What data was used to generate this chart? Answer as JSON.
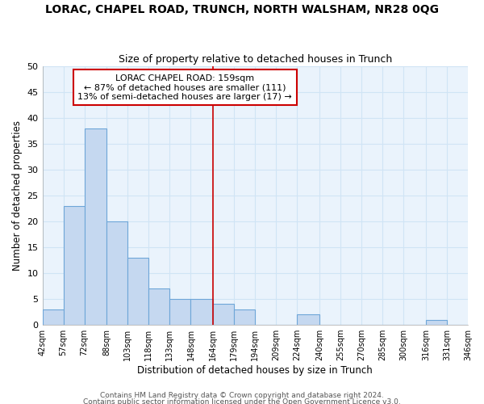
{
  "title": "LORAC, CHAPEL ROAD, TRUNCH, NORTH WALSHAM, NR28 0QG",
  "subtitle": "Size of property relative to detached houses in Trunch",
  "xlabel": "Distribution of detached houses by size in Trunch",
  "ylabel": "Number of detached properties",
  "bar_left_edges": [
    42,
    57,
    72,
    88,
    103,
    118,
    133,
    148,
    164,
    179,
    194,
    209,
    224,
    240,
    255,
    270,
    285,
    300,
    316,
    331
  ],
  "bar_heights": [
    3,
    23,
    38,
    20,
    13,
    7,
    5,
    5,
    4,
    3,
    0,
    0,
    2,
    0,
    0,
    0,
    0,
    0,
    1,
    0
  ],
  "bar_widths": [
    15,
    15,
    16,
    15,
    15,
    15,
    15,
    16,
    15,
    15,
    15,
    15,
    16,
    15,
    15,
    15,
    15,
    16,
    15,
    15
  ],
  "tick_labels": [
    "42sqm",
    "57sqm",
    "72sqm",
    "88sqm",
    "103sqm",
    "118sqm",
    "133sqm",
    "148sqm",
    "164sqm",
    "179sqm",
    "194sqm",
    "209sqm",
    "224sqm",
    "240sqm",
    "255sqm",
    "270sqm",
    "285sqm",
    "300sqm",
    "316sqm",
    "331sqm",
    "346sqm"
  ],
  "bar_color": "#c5d8f0",
  "bar_edge_color": "#6ea6d8",
  "grid_color": "#d0e4f5",
  "reference_line_x": 164,
  "reference_line_color": "#cc0000",
  "ylim": [
    0,
    50
  ],
  "yticks": [
    0,
    5,
    10,
    15,
    20,
    25,
    30,
    35,
    40,
    45,
    50
  ],
  "annotation_title": "LORAC CHAPEL ROAD: 159sqm",
  "annotation_line1": "← 87% of detached houses are smaller (111)",
  "annotation_line2": "13% of semi-detached houses are larger (17) →",
  "footnote1": "Contains HM Land Registry data © Crown copyright and database right 2024.",
  "footnote2": "Contains public sector information licensed under the Open Government Licence v3.0.",
  "bg_color": "#ffffff",
  "plot_bg_color": "#eaf3fc"
}
